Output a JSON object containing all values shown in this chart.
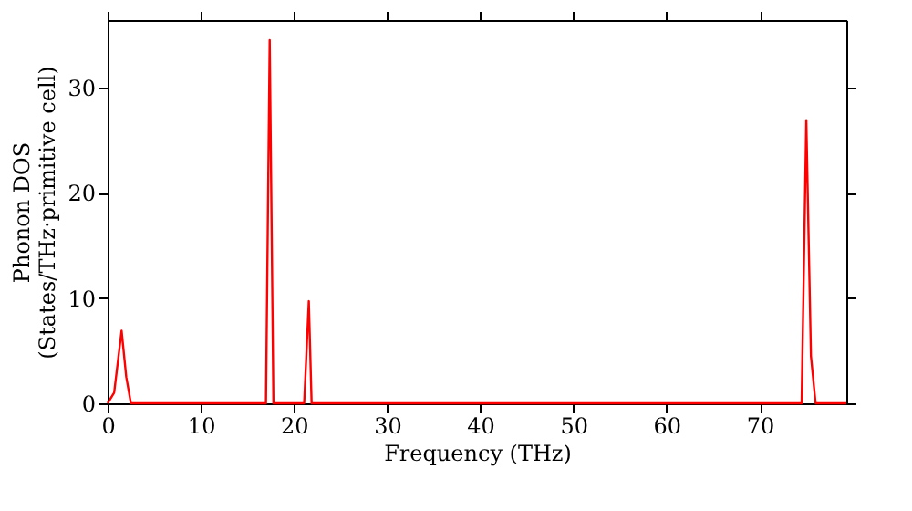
{
  "chart_data": {
    "type": "line",
    "xlabel": "Frequency (THz)",
    "ylabel": "Phonon DOS\n(States/THz·primitive cell)",
    "x": [
      0,
      0.7,
      1.5,
      2.0,
      2.5,
      17.0,
      17.4,
      17.8,
      20.1,
      21.1,
      21.6,
      21.9,
      74.5,
      75.0,
      75.5,
      76.0,
      79.3
    ],
    "series": [
      {
        "color": "#ff0000",
        "values": [
          0,
          1,
          6.9,
          2.5,
          0,
          0,
          34.5,
          0,
          0,
          0,
          9.7,
          0,
          0,
          26.9,
          4.5,
          0,
          0
        ]
      }
    ],
    "xlim": [
      0,
      79.3
    ],
    "ylim": [
      0,
      36.4
    ],
    "xticks": [
      0,
      10,
      20,
      30,
      40,
      50,
      60,
      70
    ],
    "yticks": [
      0,
      10,
      20,
      30
    ],
    "grid": false,
    "line_style": "solid",
    "marker": "none"
  }
}
